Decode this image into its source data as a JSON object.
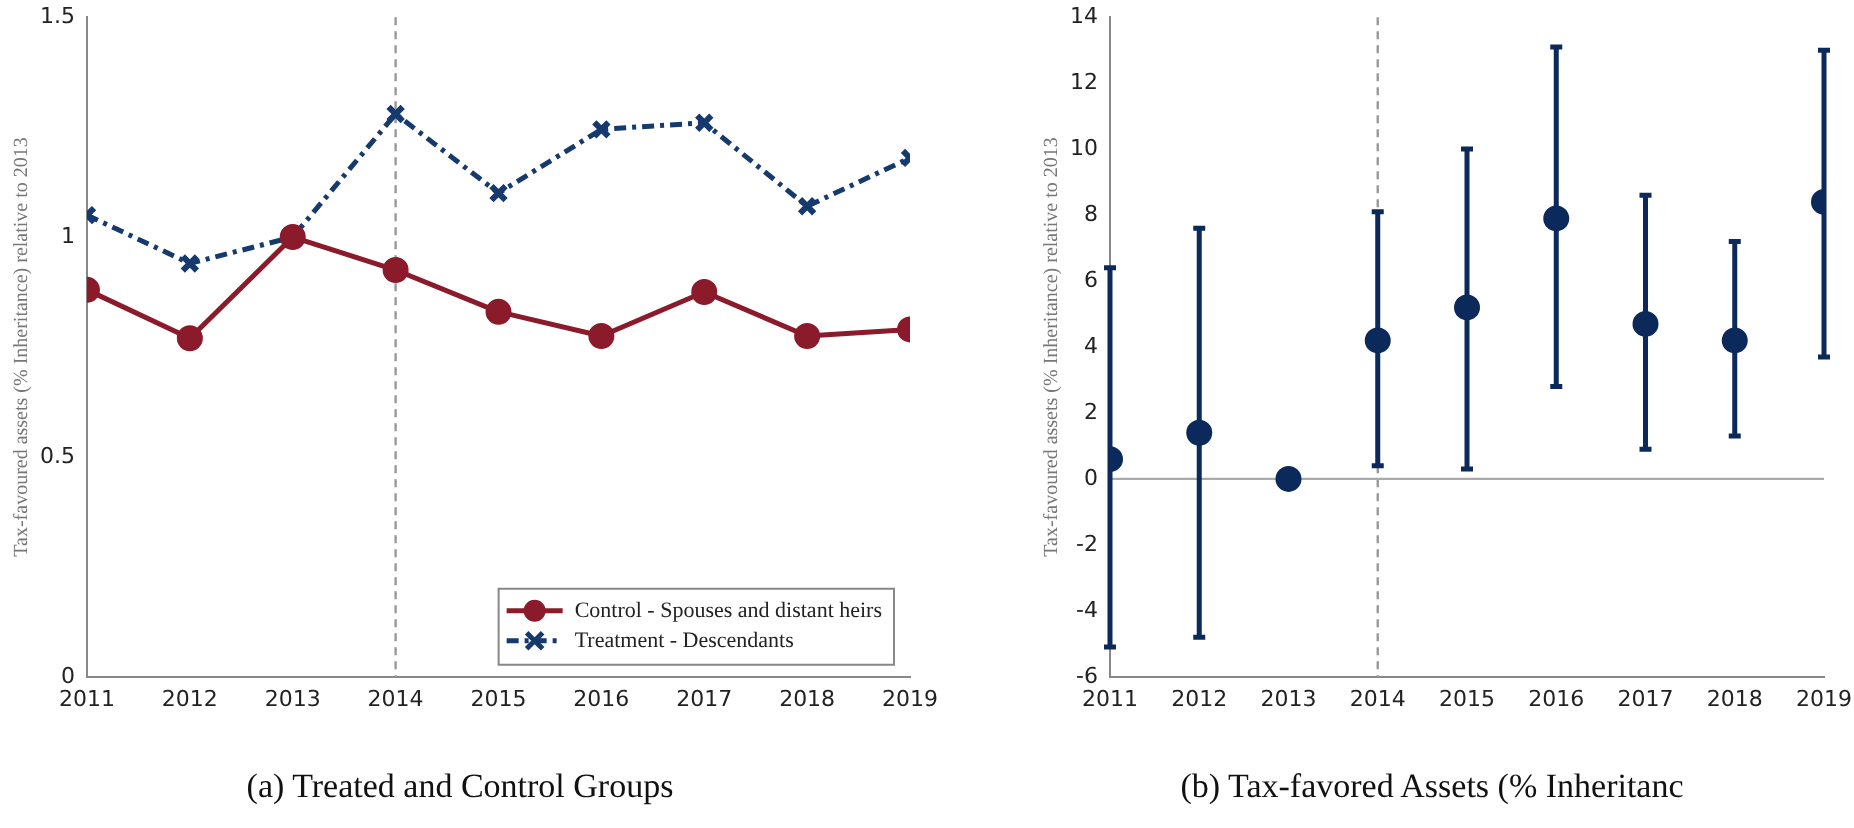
{
  "chart_data": [
    {
      "type": "line",
      "title": "(a) Treated and Control Groups",
      "ylabel": "Tax-favoured assets (% Inheritance) relative to 2013",
      "x": [
        2011,
        2012,
        2013,
        2014,
        2015,
        2016,
        2017,
        2018,
        2019
      ],
      "xlim": [
        2011,
        2019
      ],
      "xticks": [
        2011,
        2012,
        2013,
        2014,
        2015,
        2016,
        2017,
        2018,
        2019
      ],
      "ylim": [
        0,
        1.5
      ],
      "yticks": [
        0,
        0.5,
        1,
        1.5
      ],
      "grid": false,
      "legend": "bottom right",
      "series": [
        {
          "name": "Control - Spouses and distant heirs",
          "color": "#8b1a2b",
          "marker": "circle",
          "line_style": "solid",
          "values": [
            0.88,
            0.77,
            1.0,
            0.925,
            0.83,
            0.775,
            0.875,
            0.775,
            0.79
          ]
        },
        {
          "name": "Treatment - Descendants",
          "color": "#163a6e",
          "marker": "cross",
          "line_style": "dashed",
          "values": [
            1.05,
            0.94,
            1.0,
            1.28,
            1.1,
            1.245,
            1.26,
            1.07,
            1.18
          ]
        }
      ],
      "ref_lines": [
        {
          "axis": "x",
          "value": 2014,
          "color": "#999999",
          "line_style": "dashed"
        }
      ]
    },
    {
      "type": "scatter",
      "title": "(b) Tax-favored Assets (% Inheritanc",
      "ylabel": "Tax-favoured assets (% Inheritance) relative to 2013",
      "x": [
        2011,
        2012,
        2013,
        2014,
        2015,
        2016,
        2017,
        2018,
        2019
      ],
      "xlim": [
        2011,
        2019
      ],
      "xticks": [
        2011,
        2012,
        2013,
        2014,
        2015,
        2016,
        2017,
        2018,
        2019
      ],
      "ylim": [
        -6,
        14
      ],
      "yticks": [
        -6,
        -4,
        -2,
        0,
        2,
        4,
        6,
        8,
        10,
        12,
        14
      ],
      "grid": false,
      "marker": "circle",
      "color": "#0b2a5b",
      "values": [
        0.6,
        1.4,
        0,
        4.2,
        5.2,
        7.9,
        4.7,
        4.2,
        8.4
      ],
      "errors": [
        [
          -5.1,
          6.4
        ],
        [
          -4.8,
          7.6
        ],
        null,
        [
          0.4,
          8.1
        ],
        [
          0.3,
          10.0
        ],
        [
          2.8,
          13.1
        ],
        [
          0.9,
          8.6
        ],
        [
          1.3,
          7.2
        ],
        [
          3.7,
          13.0
        ]
      ],
      "ref_lines": [
        {
          "axis": "x",
          "value": 2014,
          "color": "#999999",
          "line_style": "dashed"
        },
        {
          "axis": "y",
          "value": 0,
          "color": "#aaaaaa",
          "line_style": "solid"
        }
      ]
    }
  ]
}
